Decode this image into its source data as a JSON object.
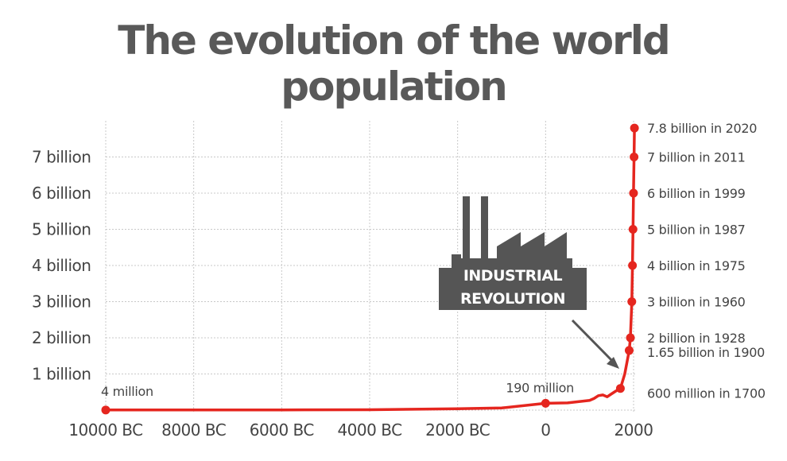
{
  "chart_data": {
    "type": "line",
    "title": "The evolution of the world population",
    "xlabel": "",
    "ylabel": "",
    "xlim": [
      -10000,
      2000
    ],
    "ylim": [
      0,
      8000
    ],
    "grid": true,
    "x_ticks": [
      {
        "value": -10000,
        "label": "10000 BC"
      },
      {
        "value": -8000,
        "label": "8000 BC"
      },
      {
        "value": -6000,
        "label": "6000 BC"
      },
      {
        "value": -4000,
        "label": "4000 BC"
      },
      {
        "value": -2000,
        "label": "2000 BC"
      },
      {
        "value": 0,
        "label": "0"
      },
      {
        "value": 2000,
        "label": "2000"
      }
    ],
    "y_ticks": [
      {
        "value": 1000,
        "label": "1 billion"
      },
      {
        "value": 2000,
        "label": "2 billion"
      },
      {
        "value": 3000,
        "label": "3 billion"
      },
      {
        "value": 4000,
        "label": "4 billion"
      },
      {
        "value": 5000,
        "label": "5 billion"
      },
      {
        "value": 6000,
        "label": "6 billion"
      },
      {
        "value": 7000,
        "label": "7 billion"
      }
    ],
    "series": [
      {
        "color": "#e5261f",
        "points": [
          {
            "x": -10000,
            "y": 4,
            "label": "4 million",
            "marker": true
          },
          {
            "x": -8000,
            "y": 5
          },
          {
            "x": -6000,
            "y": 7
          },
          {
            "x": -4000,
            "y": 10
          },
          {
            "x": -2000,
            "y": 40
          },
          {
            "x": -1000,
            "y": 60
          },
          {
            "x": 0,
            "y": 190,
            "label": "190 million",
            "marker": true
          },
          {
            "x": 500,
            "y": 200
          },
          {
            "x": 1000,
            "y": 270
          },
          {
            "x": 1100,
            "y": 320
          },
          {
            "x": 1200,
            "y": 400
          },
          {
            "x": 1300,
            "y": 420
          },
          {
            "x": 1400,
            "y": 370
          },
          {
            "x": 1500,
            "y": 450
          },
          {
            "x": 1600,
            "y": 530
          },
          {
            "x": 1700,
            "y": 600,
            "label": "600 million in 1700",
            "marker": true
          },
          {
            "x": 1800,
            "y": 1000
          },
          {
            "x": 1900,
            "y": 1650,
            "label": "1.65 billion in 1900",
            "marker": true
          },
          {
            "x": 1928,
            "y": 2000,
            "label": "2 billion in 1928",
            "marker": true
          },
          {
            "x": 1960,
            "y": 3000,
            "label": "3 billion in 1960",
            "marker": true
          },
          {
            "x": 1975,
            "y": 4000,
            "label": "4 billion in 1975",
            "marker": true
          },
          {
            "x": 1987,
            "y": 5000,
            "label": "5 billion in 1987",
            "marker": true
          },
          {
            "x": 1999,
            "y": 6000,
            "label": "6 billion in 1999",
            "marker": true
          },
          {
            "x": 2011,
            "y": 7000,
            "label": "7 billion in 2011",
            "marker": true
          },
          {
            "x": 2020,
            "y": 7800,
            "label": "7.8 billion in 2020",
            "marker": true
          }
        ]
      }
    ],
    "annotations": [
      {
        "text_line1": "INDUSTRIAL",
        "text_line2": "REVOLUTION",
        "icon": "factory-icon",
        "points_to": 1750
      }
    ]
  }
}
